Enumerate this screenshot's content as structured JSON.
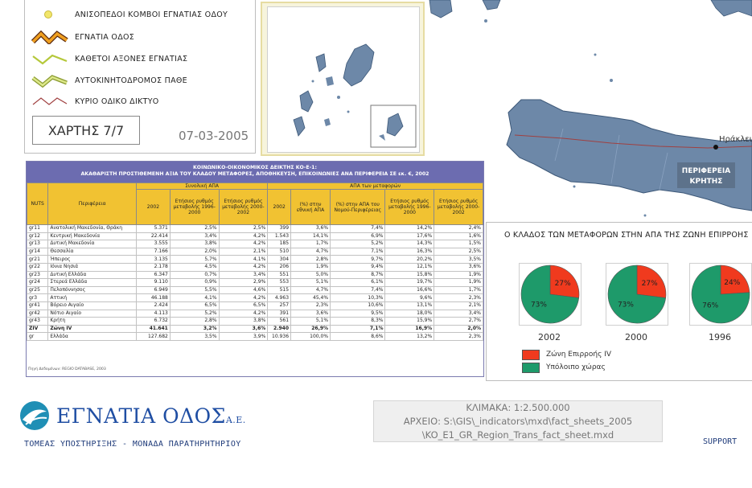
{
  "legend": {
    "items": [
      {
        "label": "ΑΝΙΣΟΠΕΔΟΙ ΚΟΜΒΟΙ ΕΓΝΑΤΙΑΣ ΟΔΟΥ",
        "symbol": "node-dot-icon",
        "color": "#f2e66b"
      },
      {
        "label": "ΕΓΝΑΤΙΑ ΟΔΟΣ",
        "symbol": "egnatia-road-icon",
        "color": "#f0a020"
      },
      {
        "label": "ΚΑΘΕΤΟΙ ΑΞΟΝΕΣ ΕΓΝΑΤΙΑΣ",
        "symbol": "vertical-axes-icon",
        "color": "#b5c83a"
      },
      {
        "label": "ΑΥΤΟΚΙΝΗΤΟΔΡΟΜΟΣ ΠΑΘΕ",
        "symbol": "pathe-motorway-icon",
        "color": "#c9d86a"
      },
      {
        "label": "ΚΥΡΙΟ ΟΔΙΚΟ ΔΙΚΤΥΟ",
        "symbol": "main-road-icon",
        "color": "#a04040"
      }
    ],
    "map_number": "ΧΑΡΤΗΣ 7/7",
    "date": "07-03-2005"
  },
  "map": {
    "city_label": "Ηράκλει",
    "region_label_line1": "ΠΕΡΙΦΕΡΕΙΑ",
    "region_label_line2": "ΚΡΗΤΗΣ",
    "land_color": "#6d88a8",
    "water_color": "#ffffff"
  },
  "table": {
    "title_line1": "ΚΟΙΝΩΝΙΚΟ-ΟΙΚΟΝΟΜΙΚΟΣ ΔΕΙΚΤΗΣ ΚΟ-Ε-1:",
    "title_line2": "ΑΚΑΘΑΡΙΣΤΗ ΠΡΟΣΤΙΘΕΜΕΝΗ ΑΞΙΑ ΤΟΥ ΚΛΑΔΟΥ ΜΕΤΑΦΟΡΕΣ, ΑΠΟΘΗΚΕΥΣΗ, ΕΠΙΚΟΙΝΩΝΙΕΣ ΑΝΑ ΠΕΡΙΦΕΡΕΙΑ ΣΕ εκ. €, 2002",
    "group_headers": {
      "nuts": "NUTS",
      "region": "Περιφέρεια",
      "total": "Συνολική ΑΠΑ",
      "transport": "ΑΠΑ των μεταφορών"
    },
    "sub_headers": [
      "2002",
      "Ετήσιος ρυθμός μεταβολής 1996-2000",
      "Ετήσιος ρυθμός μεταβολής 2000-2002",
      "2002",
      "(%) στην εθνική ΑΠΑ",
      "(%) στην ΑΠΑ του Νομού-Περιφέρειας",
      "Ετήσιος ρυθμός μεταβολής 1996-2000",
      "Ετήσιος ρυθμός μεταβολής 2000-2002"
    ],
    "rows": [
      {
        "nuts": "gr11",
        "region": "Ανατολική Μακεδονία, Θράκη",
        "v": [
          "5.371",
          "2,5%",
          "2,5%",
          "399",
          "3,6%",
          "7,4%",
          "14,2%",
          "2,4%"
        ]
      },
      {
        "nuts": "gr12",
        "region": "Κεντρική Μακεδονία",
        "v": [
          "22.414",
          "3,4%",
          "4,2%",
          "1.543",
          "14,1%",
          "6,9%",
          "17,6%",
          "1,6%"
        ]
      },
      {
        "nuts": "gr13",
        "region": "Δυτική Μακεδονία",
        "v": [
          "3.555",
          "3,8%",
          "4,2%",
          "185",
          "1,7%",
          "5,2%",
          "14,3%",
          "1,5%"
        ]
      },
      {
        "nuts": "gr14",
        "region": "Θεσσαλία",
        "v": [
          "7.166",
          "2,0%",
          "2,1%",
          "510",
          "4,7%",
          "7,1%",
          "16,3%",
          "2,5%"
        ]
      },
      {
        "nuts": "gr21",
        "region": "Ήπειρος",
        "v": [
          "3.135",
          "5,7%",
          "4,1%",
          "304",
          "2,8%",
          "9,7%",
          "20,2%",
          "3,5%"
        ]
      },
      {
        "nuts": "gr22",
        "region": "Ιόνια Νησιά",
        "v": [
          "2.178",
          "4,5%",
          "4,2%",
          "206",
          "1,9%",
          "9,4%",
          "12,1%",
          "3,6%"
        ]
      },
      {
        "nuts": "gr23",
        "region": "Δυτική Ελλάδα",
        "v": [
          "6.347",
          "0,7%",
          "3,4%",
          "551",
          "5,0%",
          "8,7%",
          "15,8%",
          "1,9%"
        ]
      },
      {
        "nuts": "gr24",
        "region": "Στερεά Ελλάδα",
        "v": [
          "9.110",
          "0,9%",
          "2,9%",
          "553",
          "5,1%",
          "6,1%",
          "19,7%",
          "1,9%"
        ]
      },
      {
        "nuts": "gr25",
        "region": "Πελοπόννησος",
        "v": [
          "6.949",
          "5,5%",
          "4,6%",
          "515",
          "4,7%",
          "7,4%",
          "16,6%",
          "1,7%"
        ]
      },
      {
        "nuts": "gr3",
        "region": "Αττική",
        "v": [
          "46.188",
          "4,1%",
          "4,2%",
          "4.963",
          "45,4%",
          "10,3%",
          "9,6%",
          "2,3%"
        ]
      },
      {
        "nuts": "gr41",
        "region": "Βόρειο Αιγαίο",
        "v": [
          "2.424",
          "6,5%",
          "6,5%",
          "257",
          "2,3%",
          "10,6%",
          "13,1%",
          "2,1%"
        ]
      },
      {
        "nuts": "gr42",
        "region": "Νότιο Αιγαίο",
        "v": [
          "4.113",
          "5,2%",
          "4,2%",
          "391",
          "3,6%",
          "9,5%",
          "18,0%",
          "3,4%"
        ]
      },
      {
        "nuts": "gr43",
        "region": "Κρήτη",
        "v": [
          "6.732",
          "2,8%",
          "3,8%",
          "561",
          "5,1%",
          "8,3%",
          "15,9%",
          "2,7%"
        ]
      },
      {
        "nuts": "ZIV",
        "region": "Ζώνη IV",
        "v": [
          "41.641",
          "3,2%",
          "3,6%",
          "2.940",
          "26,9%",
          "7,1%",
          "16,9%",
          "2,0%"
        ],
        "zone": true
      },
      {
        "nuts": "gr",
        "region": "Ελλάδα",
        "v": [
          "127.682",
          "3,5%",
          "3,9%",
          "10.936",
          "100,0%",
          "8,6%",
          "13,2%",
          "2,3%"
        ]
      }
    ],
    "source": "Πηγή Δεδομένων: REGIO DATABASE, 2003"
  },
  "chart_data": {
    "type": "pie",
    "title": "Ο ΚΛΑΔΟΣ ΤΩΝ ΜΕΤΑΦΟΡΩΝ ΣΤΗΝ ΑΠΑ ΤΗΣ ΖΩΝΗ ΕΠΙΡΡΟΗΣ",
    "pies": [
      {
        "year": "2002",
        "slices": [
          27,
          73
        ]
      },
      {
        "year": "2000",
        "slices": [
          27,
          73
        ]
      },
      {
        "year": "1996",
        "slices": [
          24,
          76
        ]
      }
    ],
    "series_labels": [
      "Ζώνη Επιρροής IV",
      "Υπόλοιπο χώρας"
    ],
    "colors": [
      "#f03a1e",
      "#1e9a6a"
    ]
  },
  "footer": {
    "logo_text": "ΕΓΝΑΤΙΑ ΟΔΟΣ",
    "logo_suffix": "Α.Ε.",
    "subtitle": "ΤΟΜΕΑΣ ΥΠΟΣΤΗΡΙΞΗΣ - ΜΟΝΑΔΑ ΠΑΡΑΤΗΡΗΤΗΡΙΟΥ",
    "scale": "ΚΛΙΜΑΚΑ: 1:2.500.000",
    "file_line1": "ΑΡΧΕΙΟ: S:\\GIS\\_indicators\\mxd\\fact_sheets_2005",
    "file_line2": "\\KO_E1_GR_Region_Trans_fact_sheet.mxd",
    "support": "SUPPORT"
  }
}
